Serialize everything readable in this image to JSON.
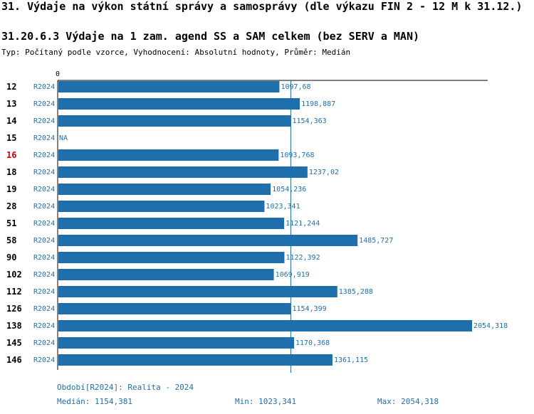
{
  "header": {
    "title": "31. Výdaje na výkon státní správy a samosprávy (dle výkazu FIN 2 - 12 M k 31.12.)",
    "subtitle": "31.20.6.3 Výdaje na 1 zam. agend SS a SAM celkem (bez SERV a MAN)",
    "type_line": "Typ: Počítaný podle vzorce, Vyhodnocení: Absolutní hodnoty, Průměr: Medián"
  },
  "colors": {
    "bar": "#1f6fad",
    "label_text": "#1f6fad",
    "highlight_code": "#cc0000",
    "code_text": "#000000"
  },
  "chart_data": {
    "type": "bar",
    "orientation": "horizontal",
    "axis_zero_label": "0",
    "xlim": [
      0,
      2125
    ],
    "median_line": 1154.381,
    "categories": [
      "12",
      "13",
      "14",
      "15",
      "16",
      "18",
      "19",
      "28",
      "51",
      "58",
      "90",
      "102",
      "112",
      "126",
      "138",
      "145",
      "146"
    ],
    "period_labels": [
      "R2024",
      "R2024",
      "R2024",
      "R2024",
      "R2024",
      "R2024",
      "R2024",
      "R2024",
      "R2024",
      "R2024",
      "R2024",
      "R2024",
      "R2024",
      "R2024",
      "R2024",
      "R2024",
      "R2024"
    ],
    "values": [
      1097.68,
      1198.887,
      1154.363,
      null,
      1093.768,
      1237.02,
      1054.236,
      1023.341,
      1121.244,
      1485.727,
      1122.392,
      1069.919,
      1385.288,
      1154.399,
      2054.318,
      1170.368,
      1361.115
    ],
    "value_labels": [
      "1097,68",
      "1198,887",
      "1154,363",
      "NA",
      "1093,768",
      "1237,02",
      "1054,236",
      "1023,341",
      "1121,244",
      "1485,727",
      "1122,392",
      "1069,919",
      "1385,288",
      "1154,399",
      "2054,318",
      "1170,368",
      "1361,115"
    ],
    "highlight": [
      "16"
    ]
  },
  "footer": {
    "period": "Období[R2024]: Realita - 2024",
    "median": "Medián: 1154,381",
    "min": "Min: 1023,341",
    "max": "Max: 2054,318"
  }
}
